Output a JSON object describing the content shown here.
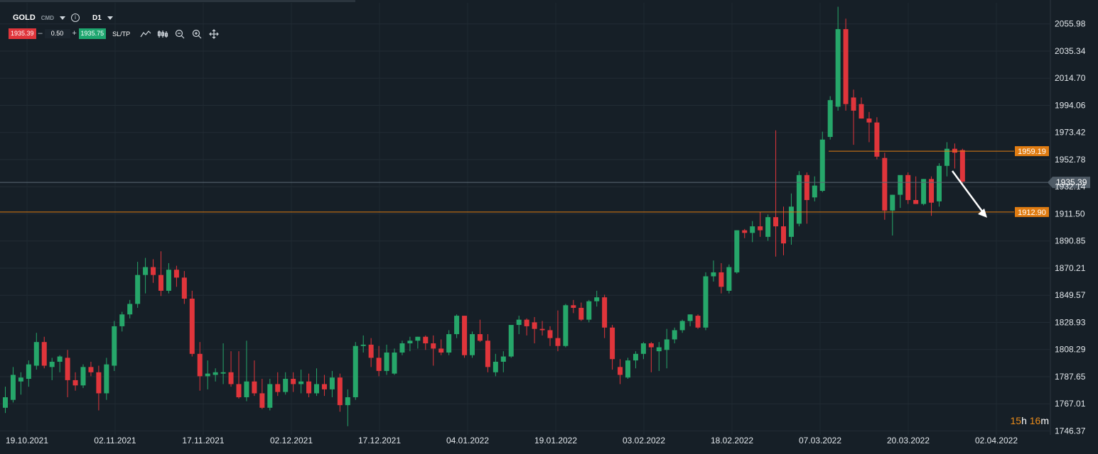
{
  "instrument": {
    "symbol": "GOLD",
    "category": "CMD",
    "timeframe": "D1"
  },
  "trade": {
    "sell_price": "1935.39",
    "lot": "0.50",
    "buy_price": "1935.75",
    "sltp_label": "SL/TP",
    "minus": "–",
    "plus": "+"
  },
  "icons": [
    "caret-down-icon",
    "info-icon",
    "line-chart-icon",
    "candles-icon",
    "zoom-out-icon",
    "zoom-in-icon",
    "crosshair-icon"
  ],
  "countdown": {
    "hours": "15",
    "h": "h",
    "minutes": "16",
    "m": "m"
  },
  "colors": {
    "background": "#161f27",
    "bull": "#26a76a",
    "bear": "#e0353b",
    "price_line": "#5c6a76",
    "level": "#e07c12",
    "label_bg": "#e07c12",
    "axis_text": "#e3e8ec",
    "countdown": "#e88a1a"
  },
  "chart_data": {
    "type": "candlestick",
    "symbol": "GOLD",
    "timeframe": "D1",
    "y_ticks": [
      "2055.98",
      "2035.34",
      "2014.70",
      "1994.06",
      "1973.42",
      "1952.78",
      "1932.14",
      "1911.50",
      "1890.85",
      "1870.21",
      "1849.57",
      "1828.93",
      "1808.29",
      "1787.65",
      "1767.01",
      "1746.37"
    ],
    "y_tick_values": [
      2055.98,
      2035.34,
      2014.7,
      1994.06,
      1973.42,
      1952.78,
      1932.14,
      1911.5,
      1890.85,
      1870.21,
      1849.57,
      1828.93,
      1808.29,
      1787.65,
      1767.01,
      1746.37
    ],
    "ylim": [
      1743.4,
      2072.0
    ],
    "x_ticks": [
      "19.10.2021",
      "02.11.2021",
      "17.11.2021",
      "02.12.2021",
      "17.12.2021",
      "04.01.2022",
      "19.01.2022",
      "03.02.2022",
      "18.02.2022",
      "07.03.2022",
      "20.03.2022",
      "02.04.2022"
    ],
    "current_price": {
      "value": 1935.39,
      "label": "1935.39"
    },
    "levels": [
      {
        "value": 1959.19,
        "label": "1959.19"
      },
      {
        "value": 1912.9,
        "label": "1912.90"
      }
    ],
    "arrow": {
      "direction": "down",
      "from_price": 1936,
      "to_price": 1912.9
    },
    "candles": [
      {
        "o": 1764,
        "h": 1780,
        "l": 1760,
        "c": 1772
      },
      {
        "o": 1770,
        "h": 1795,
        "l": 1768,
        "c": 1789
      },
      {
        "o": 1784,
        "h": 1791,
        "l": 1774,
        "c": 1787
      },
      {
        "o": 1786,
        "h": 1800,
        "l": 1780,
        "c": 1797
      },
      {
        "o": 1796,
        "h": 1821,
        "l": 1793,
        "c": 1814
      },
      {
        "o": 1814,
        "h": 1818,
        "l": 1794,
        "c": 1796
      },
      {
        "o": 1795,
        "h": 1802,
        "l": 1785,
        "c": 1799
      },
      {
        "o": 1799,
        "h": 1804,
        "l": 1791,
        "c": 1803
      },
      {
        "o": 1802,
        "h": 1808,
        "l": 1772,
        "c": 1785
      },
      {
        "o": 1785,
        "h": 1791,
        "l": 1777,
        "c": 1781
      },
      {
        "o": 1781,
        "h": 1797,
        "l": 1779,
        "c": 1795
      },
      {
        "o": 1795,
        "h": 1799,
        "l": 1788,
        "c": 1791
      },
      {
        "o": 1791,
        "h": 1796,
        "l": 1762,
        "c": 1775
      },
      {
        "o": 1775,
        "h": 1802,
        "l": 1770,
        "c": 1797
      },
      {
        "o": 1796,
        "h": 1830,
        "l": 1792,
        "c": 1826
      },
      {
        "o": 1826,
        "h": 1837,
        "l": 1822,
        "c": 1835
      },
      {
        "o": 1835,
        "h": 1846,
        "l": 1832,
        "c": 1843
      },
      {
        "o": 1843,
        "h": 1875,
        "l": 1840,
        "c": 1865
      },
      {
        "o": 1865,
        "h": 1878,
        "l": 1851,
        "c": 1871
      },
      {
        "o": 1871,
        "h": 1877,
        "l": 1859,
        "c": 1865
      },
      {
        "o": 1865,
        "h": 1883,
        "l": 1849,
        "c": 1853
      },
      {
        "o": 1853,
        "h": 1874,
        "l": 1851,
        "c": 1869
      },
      {
        "o": 1869,
        "h": 1872,
        "l": 1856,
        "c": 1863
      },
      {
        "o": 1863,
        "h": 1868,
        "l": 1843,
        "c": 1847
      },
      {
        "o": 1847,
        "h": 1853,
        "l": 1803,
        "c": 1805
      },
      {
        "o": 1805,
        "h": 1814,
        "l": 1777,
        "c": 1788
      },
      {
        "o": 1788,
        "h": 1800,
        "l": 1778,
        "c": 1790
      },
      {
        "o": 1789,
        "h": 1794,
        "l": 1784,
        "c": 1791
      },
      {
        "o": 1790,
        "h": 1813,
        "l": 1782,
        "c": 1791
      },
      {
        "o": 1791,
        "h": 1807,
        "l": 1780,
        "c": 1782
      },
      {
        "o": 1782,
        "h": 1807,
        "l": 1771,
        "c": 1772
      },
      {
        "o": 1772,
        "h": 1815,
        "l": 1769,
        "c": 1784
      },
      {
        "o": 1784,
        "h": 1800,
        "l": 1773,
        "c": 1775
      },
      {
        "o": 1775,
        "h": 1786,
        "l": 1763,
        "c": 1764
      },
      {
        "o": 1764,
        "h": 1786,
        "l": 1762,
        "c": 1782
      },
      {
        "o": 1782,
        "h": 1791,
        "l": 1773,
        "c": 1776
      },
      {
        "o": 1776,
        "h": 1791,
        "l": 1774,
        "c": 1786
      },
      {
        "o": 1786,
        "h": 1791,
        "l": 1776,
        "c": 1782
      },
      {
        "o": 1782,
        "h": 1793,
        "l": 1775,
        "c": 1784
      },
      {
        "o": 1784,
        "h": 1790,
        "l": 1772,
        "c": 1775
      },
      {
        "o": 1775,
        "h": 1794,
        "l": 1773,
        "c": 1782
      },
      {
        "o": 1782,
        "h": 1789,
        "l": 1773,
        "c": 1778
      },
      {
        "o": 1778,
        "h": 1792,
        "l": 1772,
        "c": 1787
      },
      {
        "o": 1787,
        "h": 1790,
        "l": 1761,
        "c": 1766
      },
      {
        "o": 1766,
        "h": 1778,
        "l": 1750,
        "c": 1772
      },
      {
        "o": 1772,
        "h": 1814,
        "l": 1770,
        "c": 1811
      },
      {
        "o": 1811,
        "h": 1819,
        "l": 1806,
        "c": 1812
      },
      {
        "o": 1812,
        "h": 1817,
        "l": 1795,
        "c": 1802
      },
      {
        "o": 1802,
        "h": 1811,
        "l": 1788,
        "c": 1792
      },
      {
        "o": 1792,
        "h": 1812,
        "l": 1789,
        "c": 1806
      },
      {
        "o": 1790,
        "h": 1809,
        "l": 1789,
        "c": 1806
      },
      {
        "o": 1806,
        "h": 1815,
        "l": 1804,
        "c": 1813
      },
      {
        "o": 1813,
        "h": 1818,
        "l": 1807,
        "c": 1815
      },
      {
        "o": 1815,
        "h": 1818,
        "l": 1809,
        "c": 1818
      },
      {
        "o": 1818,
        "h": 1819,
        "l": 1808,
        "c": 1813
      },
      {
        "o": 1813,
        "h": 1819,
        "l": 1796,
        "c": 1809
      },
      {
        "o": 1809,
        "h": 1816,
        "l": 1804,
        "c": 1806
      },
      {
        "o": 1806,
        "h": 1823,
        "l": 1804,
        "c": 1820
      },
      {
        "o": 1820,
        "h": 1835,
        "l": 1817,
        "c": 1834
      },
      {
        "o": 1834,
        "h": 1834,
        "l": 1802,
        "c": 1804
      },
      {
        "o": 1804,
        "h": 1822,
        "l": 1802,
        "c": 1820
      },
      {
        "o": 1820,
        "h": 1831,
        "l": 1814,
        "c": 1815
      },
      {
        "o": 1815,
        "h": 1820,
        "l": 1791,
        "c": 1795
      },
      {
        "o": 1791,
        "h": 1805,
        "l": 1788,
        "c": 1799
      },
      {
        "o": 1799,
        "h": 1807,
        "l": 1791,
        "c": 1803
      },
      {
        "o": 1803,
        "h": 1826,
        "l": 1802,
        "c": 1827
      },
      {
        "o": 1827,
        "h": 1834,
        "l": 1820,
        "c": 1831
      },
      {
        "o": 1831,
        "h": 1832,
        "l": 1819,
        "c": 1826
      },
      {
        "o": 1829,
        "h": 1833,
        "l": 1813,
        "c": 1824
      },
      {
        "o": 1824,
        "h": 1830,
        "l": 1819,
        "c": 1823
      },
      {
        "o": 1823,
        "h": 1826,
        "l": 1811,
        "c": 1817
      },
      {
        "o": 1817,
        "h": 1838,
        "l": 1807,
        "c": 1811
      },
      {
        "o": 1811,
        "h": 1843,
        "l": 1810,
        "c": 1842
      },
      {
        "o": 1842,
        "h": 1846,
        "l": 1836,
        "c": 1840
      },
      {
        "o": 1840,
        "h": 1844,
        "l": 1830,
        "c": 1831
      },
      {
        "o": 1831,
        "h": 1846,
        "l": 1829,
        "c": 1845
      },
      {
        "o": 1845,
        "h": 1853,
        "l": 1841,
        "c": 1848
      },
      {
        "o": 1848,
        "h": 1850,
        "l": 1817,
        "c": 1825
      },
      {
        "o": 1825,
        "h": 1827,
        "l": 1793,
        "c": 1801
      },
      {
        "o": 1795,
        "h": 1801,
        "l": 1782,
        "c": 1789
      },
      {
        "o": 1787,
        "h": 1802,
        "l": 1786,
        "c": 1800
      },
      {
        "o": 1800,
        "h": 1807,
        "l": 1794,
        "c": 1805
      },
      {
        "o": 1805,
        "h": 1814,
        "l": 1801,
        "c": 1813
      },
      {
        "o": 1813,
        "h": 1814,
        "l": 1791,
        "c": 1810
      },
      {
        "o": 1807,
        "h": 1814,
        "l": 1792,
        "c": 1810
      },
      {
        "o": 1808,
        "h": 1824,
        "l": 1794,
        "c": 1816
      },
      {
        "o": 1816,
        "h": 1825,
        "l": 1813,
        "c": 1823
      },
      {
        "o": 1823,
        "h": 1831,
        "l": 1821,
        "c": 1830
      },
      {
        "o": 1830,
        "h": 1835,
        "l": 1826,
        "c": 1835
      },
      {
        "o": 1834,
        "h": 1835,
        "l": 1824,
        "c": 1825
      },
      {
        "o": 1825,
        "h": 1867,
        "l": 1823,
        "c": 1864
      },
      {
        "o": 1864,
        "h": 1876,
        "l": 1860,
        "c": 1867
      },
      {
        "o": 1867,
        "h": 1874,
        "l": 1851,
        "c": 1856
      },
      {
        "o": 1853,
        "h": 1873,
        "l": 1851,
        "c": 1871
      },
      {
        "o": 1867,
        "h": 1899,
        "l": 1866,
        "c": 1899
      },
      {
        "o": 1899,
        "h": 1900,
        "l": 1893,
        "c": 1897
      },
      {
        "o": 1897,
        "h": 1906,
        "l": 1890,
        "c": 1902
      },
      {
        "o": 1902,
        "h": 1913,
        "l": 1894,
        "c": 1899
      },
      {
        "o": 1894,
        "h": 1911,
        "l": 1891,
        "c": 1909
      },
      {
        "o": 1909,
        "h": 1975,
        "l": 1879,
        "c": 1902
      },
      {
        "o": 1902,
        "h": 1917,
        "l": 1880,
        "c": 1889
      },
      {
        "o": 1894,
        "h": 1927,
        "l": 1888,
        "c": 1917
      },
      {
        "o": 1904,
        "h": 1944,
        "l": 1902,
        "c": 1941
      },
      {
        "o": 1941,
        "h": 1943,
        "l": 1904,
        "c": 1922
      },
      {
        "o": 1924,
        "h": 1940,
        "l": 1921,
        "c": 1933
      },
      {
        "o": 1929,
        "h": 1974,
        "l": 1928,
        "c": 1968
      },
      {
        "o": 1970,
        "h": 2001,
        "l": 1968,
        "c": 1998
      },
      {
        "o": 1993,
        "h": 2069,
        "l": 1990,
        "c": 2052
      },
      {
        "o": 2052,
        "h": 2060,
        "l": 1990,
        "c": 1995
      },
      {
        "o": 2000,
        "h": 2006,
        "l": 1964,
        "c": 1990
      },
      {
        "o": 1995,
        "h": 2000,
        "l": 1984,
        "c": 1984
      },
      {
        "o": 1984,
        "h": 1989,
        "l": 1966,
        "c": 1981
      },
      {
        "o": 1981,
        "h": 1985,
        "l": 1953,
        "c": 1955
      },
      {
        "o": 1954,
        "h": 1958,
        "l": 1907,
        "c": 1914
      },
      {
        "o": 1914,
        "h": 1926,
        "l": 1895,
        "c": 1926
      },
      {
        "o": 1926,
        "h": 1940,
        "l": 1916,
        "c": 1941
      },
      {
        "o": 1941,
        "h": 1943,
        "l": 1919,
        "c": 1922
      },
      {
        "o": 1922,
        "h": 1940,
        "l": 1919,
        "c": 1919
      },
      {
        "o": 1919,
        "h": 1938,
        "l": 1918,
        "c": 1938
      },
      {
        "o": 1938,
        "h": 1940,
        "l": 1910,
        "c": 1920
      },
      {
        "o": 1921,
        "h": 1950,
        "l": 1917,
        "c": 1948
      },
      {
        "o": 1948,
        "h": 1966,
        "l": 1940,
        "c": 1961
      },
      {
        "o": 1961,
        "h": 1965,
        "l": 1946,
        "c": 1958
      },
      {
        "o": 1960,
        "h": 1961,
        "l": 1933,
        "c": 1936
      }
    ]
  }
}
